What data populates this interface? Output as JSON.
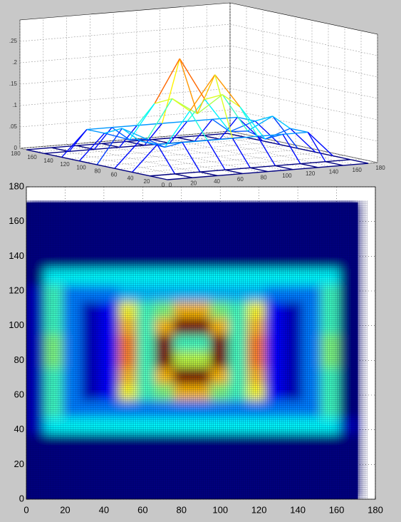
{
  "chart_data": [
    {
      "type": "mesh3d",
      "x": [
        0,
        21.5,
        43,
        64.5,
        86,
        107.5,
        129,
        150.5,
        172
      ],
      "y": [
        0,
        21.5,
        43,
        64.5,
        86,
        107.5,
        129,
        150.5,
        172
      ],
      "z": [
        [
          0,
          0,
          0,
          0,
          0,
          0,
          0,
          0,
          0
        ],
        [
          0,
          0,
          0,
          0,
          0,
          0,
          0,
          0,
          0
        ],
        [
          0,
          0.06,
          0.06,
          0.06,
          0.06,
          0.06,
          0.06,
          0.06,
          0
        ],
        [
          0,
          0.06,
          0.04,
          0.12,
          0.2,
          0.12,
          0.04,
          0.06,
          0
        ],
        [
          0,
          0.08,
          0.05,
          0.14,
          0.1,
          0.14,
          0.05,
          0.08,
          0
        ],
        [
          0,
          0.06,
          0.04,
          0.12,
          0.22,
          0.12,
          0.04,
          0.06,
          0
        ],
        [
          0,
          0.06,
          0.06,
          0.06,
          0.06,
          0.06,
          0.06,
          0.06,
          0
        ],
        [
          0,
          0,
          0,
          0,
          0,
          0,
          0,
          0,
          0
        ],
        [
          0,
          0,
          0,
          0,
          0,
          0,
          0,
          0,
          0
        ]
      ],
      "xlim": [
        0,
        180
      ],
      "ylim": [
        0,
        180
      ],
      "zlim": [
        0,
        0.3
      ],
      "xticks": [
        0,
        20,
        40,
        60,
        80,
        100,
        120,
        140,
        160,
        180
      ],
      "yticks": [
        0,
        20,
        40,
        60,
        80,
        100,
        120,
        140,
        160,
        180
      ],
      "zticks": [
        0,
        {
          "value": 0.05,
          "label": ".05"
        },
        {
          "value": 0.1,
          "label": ".1"
        },
        {
          "value": 0.15,
          "label": ".15"
        },
        {
          "value": 0.2,
          "label": ".2"
        },
        {
          "value": 0.25,
          "label": ".25"
        }
      ],
      "grid": true
    },
    {
      "type": "heatmap",
      "x": [
        4.75,
        14.25,
        23.75,
        33.25,
        42.75,
        52.25,
        61.75,
        71.25,
        80.75,
        90.25,
        99.75,
        109.25,
        118.75,
        128.25,
        137.75,
        147.25,
        156.75,
        166.25
      ],
      "y": [
        4.75,
        14.25,
        23.75,
        33.25,
        42.75,
        52.25,
        61.75,
        71.25,
        80.75,
        90.25,
        99.75,
        109.25,
        118.75,
        128.25,
        137.75,
        147.25,
        156.75,
        166.25
      ],
      "z": [
        [
          0.05,
          0.05,
          0.05,
          0.05,
          0.05,
          0.05,
          0.05,
          0.05,
          0.05,
          0.05,
          0.05,
          0.05,
          0.05,
          0.05,
          0.05,
          0.05,
          0.05,
          0.05
        ],
        [
          0.05,
          0.05,
          0.05,
          0.05,
          0.05,
          0.05,
          0.05,
          0.05,
          0.05,
          0.05,
          0.05,
          0.05,
          0.05,
          0.05,
          0.05,
          0.05,
          0.05,
          0.05
        ],
        [
          0.05,
          0.05,
          0.05,
          0.05,
          0.05,
          0.05,
          0.05,
          0.05,
          0.05,
          0.05,
          0.05,
          0.05,
          0.05,
          0.05,
          0.05,
          0.05,
          0.05,
          0.05
        ],
        [
          0.05,
          0.05,
          0.05,
          0.05,
          0.05,
          0.05,
          0.05,
          0.05,
          0.05,
          0.05,
          0.05,
          0.05,
          0.05,
          0.05,
          0.05,
          0.05,
          0.05,
          0.05
        ],
        [
          0.1,
          0.35,
          0.35,
          0.35,
          0.35,
          0.35,
          0.35,
          0.35,
          0.35,
          0.35,
          0.35,
          0.35,
          0.35,
          0.35,
          0.35,
          0.35,
          0.35,
          0.1
        ],
        [
          0.1,
          0.4,
          0.25,
          0.25,
          0.25,
          0.25,
          0.25,
          0.25,
          0.25,
          0.25,
          0.25,
          0.25,
          0.25,
          0.25,
          0.25,
          0.25,
          0.4,
          0.05
        ],
        [
          0.1,
          0.4,
          0.25,
          0.1,
          0.15,
          0.55,
          0.4,
          0.45,
          0.6,
          0.6,
          0.45,
          0.4,
          0.55,
          0.15,
          0.1,
          0.25,
          0.4,
          0.05
        ],
        [
          0.1,
          0.4,
          0.25,
          0.1,
          0.15,
          0.6,
          0.4,
          0.6,
          0.85,
          0.85,
          0.6,
          0.4,
          0.6,
          0.15,
          0.1,
          0.25,
          0.4,
          0.05
        ],
        [
          0.1,
          0.45,
          0.25,
          0.1,
          0.15,
          0.65,
          0.4,
          0.85,
          0.5,
          0.5,
          0.85,
          0.4,
          0.65,
          0.15,
          0.1,
          0.25,
          0.45,
          0.05
        ],
        [
          0.1,
          0.45,
          0.25,
          0.1,
          0.15,
          0.65,
          0.4,
          0.85,
          0.4,
          0.4,
          0.85,
          0.4,
          0.65,
          0.15,
          0.1,
          0.25,
          0.45,
          0.05
        ],
        [
          0.1,
          0.4,
          0.25,
          0.1,
          0.15,
          0.6,
          0.4,
          0.6,
          0.85,
          0.85,
          0.6,
          0.4,
          0.6,
          0.15,
          0.1,
          0.25,
          0.4,
          0.05
        ],
        [
          0.1,
          0.4,
          0.25,
          0.1,
          0.15,
          0.55,
          0.4,
          0.45,
          0.6,
          0.6,
          0.45,
          0.4,
          0.55,
          0.15,
          0.1,
          0.25,
          0.4,
          0.05
        ],
        [
          0.1,
          0.4,
          0.25,
          0.25,
          0.25,
          0.3,
          0.3,
          0.3,
          0.3,
          0.3,
          0.3,
          0.3,
          0.3,
          0.25,
          0.25,
          0.25,
          0.4,
          0.05
        ],
        [
          0.05,
          0.35,
          0.35,
          0.35,
          0.35,
          0.35,
          0.35,
          0.35,
          0.35,
          0.35,
          0.35,
          0.35,
          0.35,
          0.35,
          0.35,
          0.35,
          0.35,
          0.05
        ],
        [
          0.05,
          0.05,
          0.05,
          0.05,
          0.05,
          0.05,
          0.05,
          0.05,
          0.05,
          0.05,
          0.05,
          0.05,
          0.05,
          0.05,
          0.05,
          0.05,
          0.05,
          0.05
        ],
        [
          0.05,
          0.05,
          0.05,
          0.05,
          0.05,
          0.05,
          0.05,
          0.05,
          0.05,
          0.05,
          0.05,
          0.05,
          0.05,
          0.05,
          0.05,
          0.05,
          0.05,
          0.05
        ],
        [
          0.05,
          0.05,
          0.05,
          0.05,
          0.05,
          0.05,
          0.05,
          0.05,
          0.05,
          0.05,
          0.05,
          0.05,
          0.05,
          0.05,
          0.05,
          0.05,
          0.05,
          0.05
        ],
        [
          0.05,
          0.05,
          0.05,
          0.05,
          0.05,
          0.05,
          0.05,
          0.05,
          0.05,
          0.05,
          0.05,
          0.05,
          0.05,
          0.05,
          0.05,
          0.05,
          0.05,
          0.05
        ]
      ],
      "xlim": [
        0,
        180
      ],
      "ylim": [
        0,
        180
      ],
      "xticks": [
        0,
        20,
        40,
        60,
        80,
        100,
        120,
        140,
        160,
        180
      ],
      "yticks": [
        0,
        20,
        40,
        60,
        80,
        100,
        120,
        140,
        160,
        180
      ],
      "grid": true
    }
  ]
}
